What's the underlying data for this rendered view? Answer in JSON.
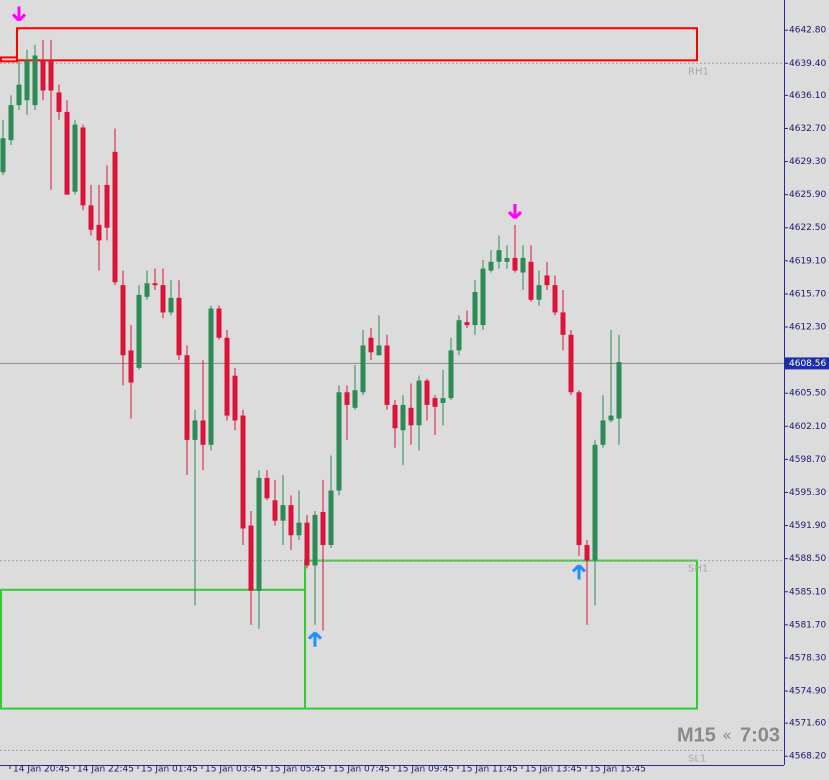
{
  "chart_data": {
    "type": "candlestick",
    "categories": [
      null,
      "14 Jan 20:45",
      null,
      null,
      null,
      null,
      null,
      null,
      null,
      "14 Jan 22:45",
      null,
      null,
      null,
      null,
      null,
      null,
      null,
      "15 Jan 01:45",
      null,
      null,
      null,
      null,
      null,
      null,
      null,
      "15 Jan 03:45",
      null,
      null,
      null,
      null,
      null,
      null,
      null,
      "15 Jan 05:45",
      null,
      null,
      null,
      null,
      null,
      null,
      null,
      "15 Jan 07:45",
      null,
      null,
      null,
      null,
      null,
      null,
      null,
      "15 Jan 09:45",
      null,
      null,
      null,
      null,
      null,
      null,
      null,
      "15 Jan 11:45",
      null,
      null,
      null,
      null,
      null,
      null,
      null,
      "15 Jan 13:45",
      null,
      null,
      null,
      null,
      null,
      null,
      null,
      "15 Jan 15:45",
      null,
      null,
      null,
      null
    ],
    "open": [
      4628.2,
      4631.5,
      4635.1,
      4635.6,
      4635.1,
      4639.7,
      4639.7,
      4636.4,
      4634.4,
      4626.2,
      4632.8,
      4624.8,
      4622.8,
      4626.9,
      4630.3,
      4616.6,
      4609.9,
      4608.1,
      4615.4,
      4616.8,
      4616.6,
      4613.8,
      4615.3,
      4609.4,
      4600.7,
      4602.7,
      4600.2,
      4614.2,
      4611.2,
      4607.3,
      4603.2,
      4591.9,
      4585.2,
      4596.8,
      4594.5,
      4592.4,
      4594.0,
      4590.9,
      4592.2,
      4587.8,
      4593.3,
      4589.9,
      4595.5,
      4605.6,
      4604.0,
      4605.6,
      4611.2,
      4609.4,
      4610.4,
      4604.3,
      4601.7,
      4604.0,
      4602.2,
      4606.8,
      4605.0,
      4604.5,
      4605.0,
      4609.9,
      4612.8,
      4612.5,
      4612.5,
      4618.1,
      4619.0,
      4619.0,
      4619.4,
      4617.9,
      4619.0,
      4615.1,
      4617.6,
      4616.6,
      4613.8,
      4611.5,
      4605.6,
      4589.9,
      4588.3,
      4600.2,
      4602.7,
      4602.9
    ],
    "high": [
      4633.6,
      4636.1,
      4639.7,
      4640.8,
      4641.3,
      4641.8,
      4641.8,
      4637.2,
      4635.6,
      4633.6,
      4633.1,
      4626.9,
      4626.9,
      4628.9,
      4632.7,
      4618.1,
      4612.5,
      4616.6,
      4618.1,
      4618.3,
      4618.3,
      4617.1,
      4617.1,
      4610.4,
      4603.8,
      4608.9,
      4614.5,
      4614.5,
      4612.0,
      4608.1,
      4603.8,
      4593.4,
      4597.6,
      4597.6,
      4596.6,
      4597.1,
      4595.0,
      4595.5,
      4593.0,
      4593.4,
      4596.6,
      4599.1,
      4606.3,
      4606.3,
      4608.4,
      4612.0,
      4612.2,
      4613.5,
      4611.5,
      4604.8,
      4605.3,
      4606.5,
      4607.3,
      4607.0,
      4605.3,
      4607.9,
      4611.2,
      4613.5,
      4614.0,
      4617.1,
      4619.2,
      4620.2,
      4621.7,
      4620.7,
      4622.8,
      4620.7,
      4620.7,
      4618.1,
      4619.0,
      4617.6,
      4616.1,
      4612.0,
      4605.8,
      4590.4,
      4600.7,
      4605.3,
      4612.0,
      4611.5
    ],
    "low": [
      4627.9,
      4631.0,
      4634.6,
      4634.1,
      4634.6,
      4635.6,
      4626.4,
      4633.6,
      4625.9,
      4625.9,
      4624.3,
      4621.7,
      4618.1,
      4621.2,
      4616.6,
      4606.3,
      4602.9,
      4607.9,
      4615.1,
      4616.1,
      4613.2,
      4613.5,
      4608.9,
      4597.1,
      4583.7,
      4597.6,
      4599.6,
      4611.0,
      4602.7,
      4601.7,
      4589.9,
      4581.7,
      4581.3,
      4594.5,
      4591.9,
      4589.9,
      4589.4,
      4590.4,
      4587.5,
      4581.7,
      4581.1,
      4589.6,
      4595.0,
      4600.7,
      4603.8,
      4605.3,
      4608.9,
      4609.4,
      4603.8,
      4599.9,
      4598.1,
      4600.2,
      4599.6,
      4602.7,
      4601.2,
      4602.2,
      4604.8,
      4609.4,
      4612.2,
      4611.5,
      4612.0,
      4617.9,
      4618.3,
      4618.3,
      4617.9,
      4616.1,
      4614.9,
      4614.5,
      4616.1,
      4613.5,
      4609.9,
      4605.3,
      4588.8,
      4581.7,
      4583.7,
      4599.9,
      4602.5,
      4600.2
    ],
    "close": [
      4631.7,
      4635.1,
      4637.2,
      4639.7,
      4640.2,
      4636.6,
      4636.6,
      4634.4,
      4625.9,
      4633.1,
      4624.8,
      4622.3,
      4621.2,
      4622.5,
      4616.9,
      4609.4,
      4606.6,
      4615.6,
      4616.8,
      4616.6,
      4613.8,
      4615.3,
      4609.4,
      4600.7,
      4602.7,
      4600.2,
      4614.2,
      4611.2,
      4603.2,
      4602.7,
      4591.6,
      4585.2,
      4596.8,
      4594.7,
      4592.4,
      4594.0,
      4590.9,
      4592.2,
      4587.8,
      4593.0,
      4589.9,
      4595.5,
      4605.6,
      4604.3,
      4605.8,
      4610.4,
      4609.7,
      4610.4,
      4604.3,
      4601.9,
      4604.3,
      4602.2,
      4606.8,
      4604.3,
      4604.1,
      4605.0,
      4609.9,
      4613.0,
      4612.5,
      4615.9,
      4618.3,
      4619.0,
      4620.2,
      4619.4,
      4618.1,
      4619.4,
      4615.1,
      4616.6,
      4616.6,
      4613.8,
      4611.5,
      4605.6,
      4589.9,
      4588.3,
      4600.2,
      4602.7,
      4603.2,
      4608.7
    ],
    "up_color": "#2e8b57",
    "down_color": "#dc143c",
    "ylim": [
      4567.3,
      4645.9
    ],
    "yticks": [
      {
        "value": 4642.8,
        "label": "4642.80"
      },
      {
        "value": 4639.4,
        "label": "4639.40"
      },
      {
        "value": 4636.1,
        "label": "4636.10"
      },
      {
        "value": 4632.7,
        "label": "4632.70"
      },
      {
        "value": 4629.3,
        "label": "4629.30"
      },
      {
        "value": 4625.9,
        "label": "4625.90"
      },
      {
        "value": 4622.5,
        "label": "4622.50"
      },
      {
        "value": 4619.1,
        "label": "4619.10"
      },
      {
        "value": 4615.7,
        "label": "4615.70"
      },
      {
        "value": 4612.3,
        "label": "4612.30"
      },
      {
        "value": 4605.5,
        "label": "4605.50"
      },
      {
        "value": 4602.1,
        "label": "4602.10"
      },
      {
        "value": 4598.7,
        "label": "4598.70"
      },
      {
        "value": 4595.3,
        "label": "4595.30"
      },
      {
        "value": 4591.9,
        "label": "4591.90"
      },
      {
        "value": 4588.5,
        "label": "4588.50"
      },
      {
        "value": 4585.1,
        "label": "4585.10"
      },
      {
        "value": 4581.7,
        "label": "4581.70"
      },
      {
        "value": 4578.3,
        "label": "4578.30"
      },
      {
        "value": 4574.9,
        "label": "4574.90"
      },
      {
        "value": 4571.6,
        "label": "4571.60"
      },
      {
        "value": 4568.2,
        "label": "4568.20"
      }
    ],
    "current_price": 4608.56,
    "levels": [
      {
        "name": "RH1",
        "value": 4639.4
      },
      {
        "name": "SH1",
        "value": 4588.3
      },
      {
        "name": "SL1",
        "value": 4568.8
      }
    ],
    "zones": [
      {
        "top": 4643.0,
        "bottom": 4639.7,
        "start": 2,
        "end": 87,
        "color": "#ff0000"
      },
      {
        "top": 4640.0,
        "bottom": 4639.6,
        "start": 0,
        "end": 2,
        "color": "#ff0000"
      },
      {
        "top": 4588.3,
        "bottom": 4573.1,
        "start": 38,
        "end": 87,
        "color": "#32cd32"
      },
      {
        "top": 4585.3,
        "bottom": 4573.1,
        "start": 0,
        "end": 38,
        "color": "#32cd32"
      }
    ],
    "arrows": [
      {
        "index": 2,
        "price": 4643.8,
        "direction": "down",
        "color": "#ff00ff"
      },
      {
        "index": 64,
        "price": 4623.5,
        "direction": "down",
        "color": "#ff00ff"
      },
      {
        "index": 39,
        "price": 4580.9,
        "direction": "up",
        "color": "#1e90ff"
      },
      {
        "index": 72,
        "price": 4587.8,
        "direction": "up",
        "color": "#1e90ff"
      }
    ],
    "timeframe": "M15",
    "countdown_marker": "«",
    "countdown": "7:03"
  }
}
